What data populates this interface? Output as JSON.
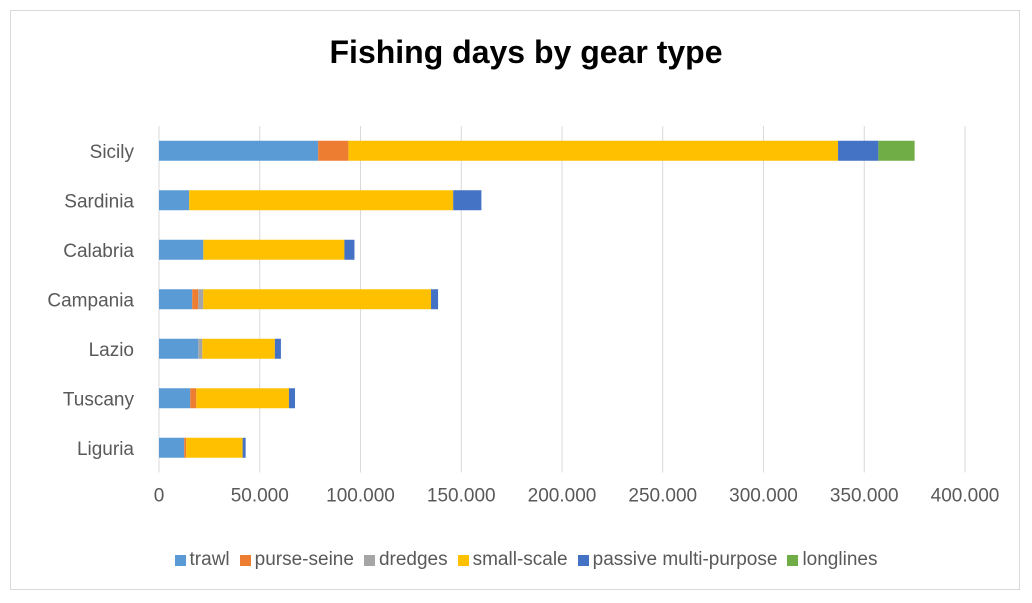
{
  "chart_data": {
    "type": "bar",
    "orientation": "horizontal",
    "stacked": true,
    "title": "Fishing days by gear type",
    "xlabel": "",
    "ylabel": "",
    "categories": [
      "Sicily",
      "Sardinia",
      "Calabria",
      "Campania",
      "Lazio",
      "Tuscany",
      "Liguria"
    ],
    "series": [
      {
        "name": "trawl",
        "color": "#5b9bd5",
        "values": [
          79000,
          15000,
          22000,
          16500,
          19500,
          15500,
          12500
        ]
      },
      {
        "name": "purse-seine",
        "color": "#ed7d31",
        "values": [
          15000,
          0,
          0,
          3000,
          0,
          3000,
          1000
        ]
      },
      {
        "name": "dredges",
        "color": "#a5a5a5",
        "values": [
          0,
          0,
          0,
          2500,
          2000,
          0,
          0
        ]
      },
      {
        "name": "small-scale",
        "color": "#ffc000",
        "values": [
          243000,
          131000,
          70000,
          113000,
          36000,
          46000,
          28000
        ]
      },
      {
        "name": "passive multi-purpose",
        "color": "#4472c4",
        "values": [
          20000,
          14000,
          5000,
          3500,
          3000,
          3000,
          1500
        ]
      },
      {
        "name": "longlines",
        "color": "#70ad47",
        "values": [
          18000,
          0,
          0,
          0,
          0,
          0,
          0
        ]
      }
    ],
    "xlim": [
      0,
      400000
    ],
    "xticks": [
      "0",
      "50.000",
      "100.000",
      "150.000",
      "200.000",
      "250.000",
      "300.000",
      "350.000",
      "400.000"
    ],
    "grid": true,
    "legend_position": "bottom"
  }
}
